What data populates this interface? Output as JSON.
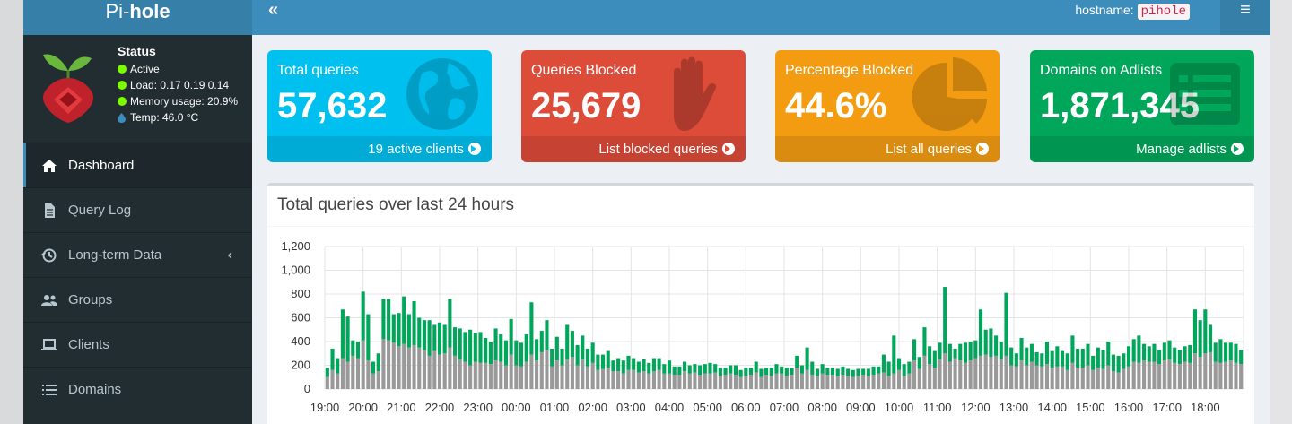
{
  "header": {
    "logo_prefix": "Pi-",
    "logo_suffix": "hole",
    "collapse_icon": "«",
    "hostname_label": "hostname:",
    "hostname_value": "pihole",
    "menu_icon": "≡"
  },
  "status": {
    "title": "Status",
    "active": "Active",
    "load": "Load:  0.17  0.19  0.14",
    "memory": "Memory usage:  20.9%",
    "temp": "Temp: 46.0 °C",
    "status_color": "#7cfc00",
    "temp_color": "#3c8dbc"
  },
  "sidebar": {
    "items": [
      {
        "label": "Dashboard",
        "icon": "home-icon",
        "active": true
      },
      {
        "label": "Query Log",
        "icon": "file-icon"
      },
      {
        "label": "Long-term Data",
        "icon": "history-icon",
        "caret": "‹"
      },
      {
        "label": "Groups",
        "icon": "users-icon"
      },
      {
        "label": "Clients",
        "icon": "laptop-icon"
      },
      {
        "label": "Domains",
        "icon": "list-icon"
      }
    ]
  },
  "stats": {
    "total": {
      "label": "Total queries",
      "value": "57,632",
      "footer": "19 active clients",
      "icon": "globe-icon",
      "color": "#00c0ef"
    },
    "blocked": {
      "label": "Queries Blocked",
      "value": "25,679",
      "footer": "List blocked queries",
      "icon": "hand-icon",
      "color": "#dd4b39"
    },
    "percent": {
      "label": "Percentage Blocked",
      "value": "44.6%",
      "footer": "List all queries",
      "icon": "pie-chart-icon",
      "color": "#f39c12"
    },
    "domains": {
      "label": "Domains on Adlists",
      "value": "1,871,345",
      "footer": "Manage adlists",
      "icon": "list-alt-icon",
      "color": "#00a65a"
    }
  },
  "chart_data": {
    "type": "bar",
    "title": "Total queries over last 24 hours",
    "stacked": true,
    "x_tick_labels": [
      "19:00",
      "20:00",
      "21:00",
      "22:00",
      "23:00",
      "00:00",
      "01:00",
      "02:00",
      "03:00",
      "04:00",
      "05:00",
      "06:00",
      "07:00",
      "08:00",
      "09:00",
      "10:00",
      "11:00",
      "12:00",
      "13:00",
      "14:00",
      "15:00",
      "16:00",
      "17:00",
      "18:00"
    ],
    "ylim": [
      0,
      1200
    ],
    "y_ticks": [
      "0",
      "200",
      "400",
      "600",
      "800",
      "1,000",
      "1,200"
    ],
    "grid": true,
    "colors": {
      "blocked": "#00a65a",
      "permitted": "#999999"
    },
    "series": [
      {
        "key": "permitted",
        "values": [
          100,
          160,
          130,
          260,
          230,
          280,
          260,
          410,
          240,
          130,
          150,
          420,
          410,
          390,
          360,
          380,
          350,
          370,
          350,
          330,
          280,
          320,
          290,
          300,
          350,
          280,
          250,
          230,
          200,
          230,
          220,
          220,
          210,
          240,
          230,
          200,
          290,
          200,
          190,
          230,
          290,
          240,
          310,
          330,
          190,
          240,
          200,
          250,
          270,
          200,
          250,
          190,
          220,
          160,
          170,
          180,
          150,
          150,
          130,
          160,
          160,
          140,
          150,
          130,
          150,
          160,
          130,
          130,
          120,
          120,
          150,
          130,
          140,
          120,
          130,
          130,
          140,
          110,
          120,
          130,
          120,
          100,
          110,
          120,
          140,
          100,
          120,
          110,
          130,
          130,
          110,
          120,
          180,
          130,
          160,
          120,
          110,
          130,
          120,
          120,
          110,
          120,
          110,
          100,
          110,
          120,
          110,
          120,
          130,
          140,
          110,
          130,
          160,
          110,
          130,
          240,
          170,
          280,
          210,
          180,
          250,
          300,
          230,
          260,
          240,
          220,
          240,
          260,
          280,
          290,
          270,
          280,
          250,
          280,
          200,
          190,
          240,
          200,
          230,
          200,
          190,
          210,
          180,
          190,
          190,
          160,
          220,
          180,
          180,
          200,
          160,
          180,
          170,
          200,
          150,
          140,
          170,
          190,
          230,
          220,
          240,
          230,
          230,
          210,
          240,
          250,
          220,
          210,
          230,
          220,
          300,
          270,
          300,
          310,
          230,
          220,
          230,
          240,
          220,
          210
        ]
      },
      {
        "key": "blocked",
        "values": [
          80,
          180,
          130,
          410,
          380,
          130,
          140,
          410,
          390,
          100,
          150,
          340,
          350,
          240,
          280,
          400,
          280,
          370,
          250,
          250,
          300,
          220,
          270,
          240,
          410,
          240,
          260,
          250,
          300,
          240,
          260,
          210,
          190,
          270,
          230,
          210,
          300,
          210,
          200,
          230,
          440,
          180,
          180,
          250,
          150,
          200,
          140,
          290,
          220,
          170,
          200,
          150,
          170,
          130,
          120,
          140,
          90,
          110,
          110,
          120,
          100,
          90,
          100,
          90,
          110,
          100,
          80,
          110,
          70,
          70,
          80,
          70,
          70,
          80,
          80,
          90,
          70,
          70,
          60,
          70,
          80,
          60,
          70,
          60,
          90,
          70,
          60,
          70,
          80,
          60,
          70,
          60,
          100,
          70,
          190,
          110,
          60,
          80,
          60,
          60,
          60,
          70,
          60,
          60,
          60,
          50,
          60,
          70,
          60,
          150,
          120,
          320,
          100,
          100,
          100,
          180,
          100,
          240,
          150,
          140,
          140,
          560,
          150,
          80,
          140,
          170,
          160,
          150,
          390,
          210,
          240,
          170,
          150,
          530,
          150,
          110,
          190,
          150,
          150,
          110,
          110,
          190,
          140,
          170,
          130,
          140,
          230,
          160,
          160,
          180,
          120,
          170,
          160,
          200,
          140,
          140,
          130,
          170,
          190,
          230,
          140,
          130,
          150,
          120,
          150,
          160,
          130,
          120,
          130,
          150,
          370,
          310,
          370,
          230,
          160,
          200,
          160,
          150,
          160,
          120
        ]
      }
    ]
  }
}
